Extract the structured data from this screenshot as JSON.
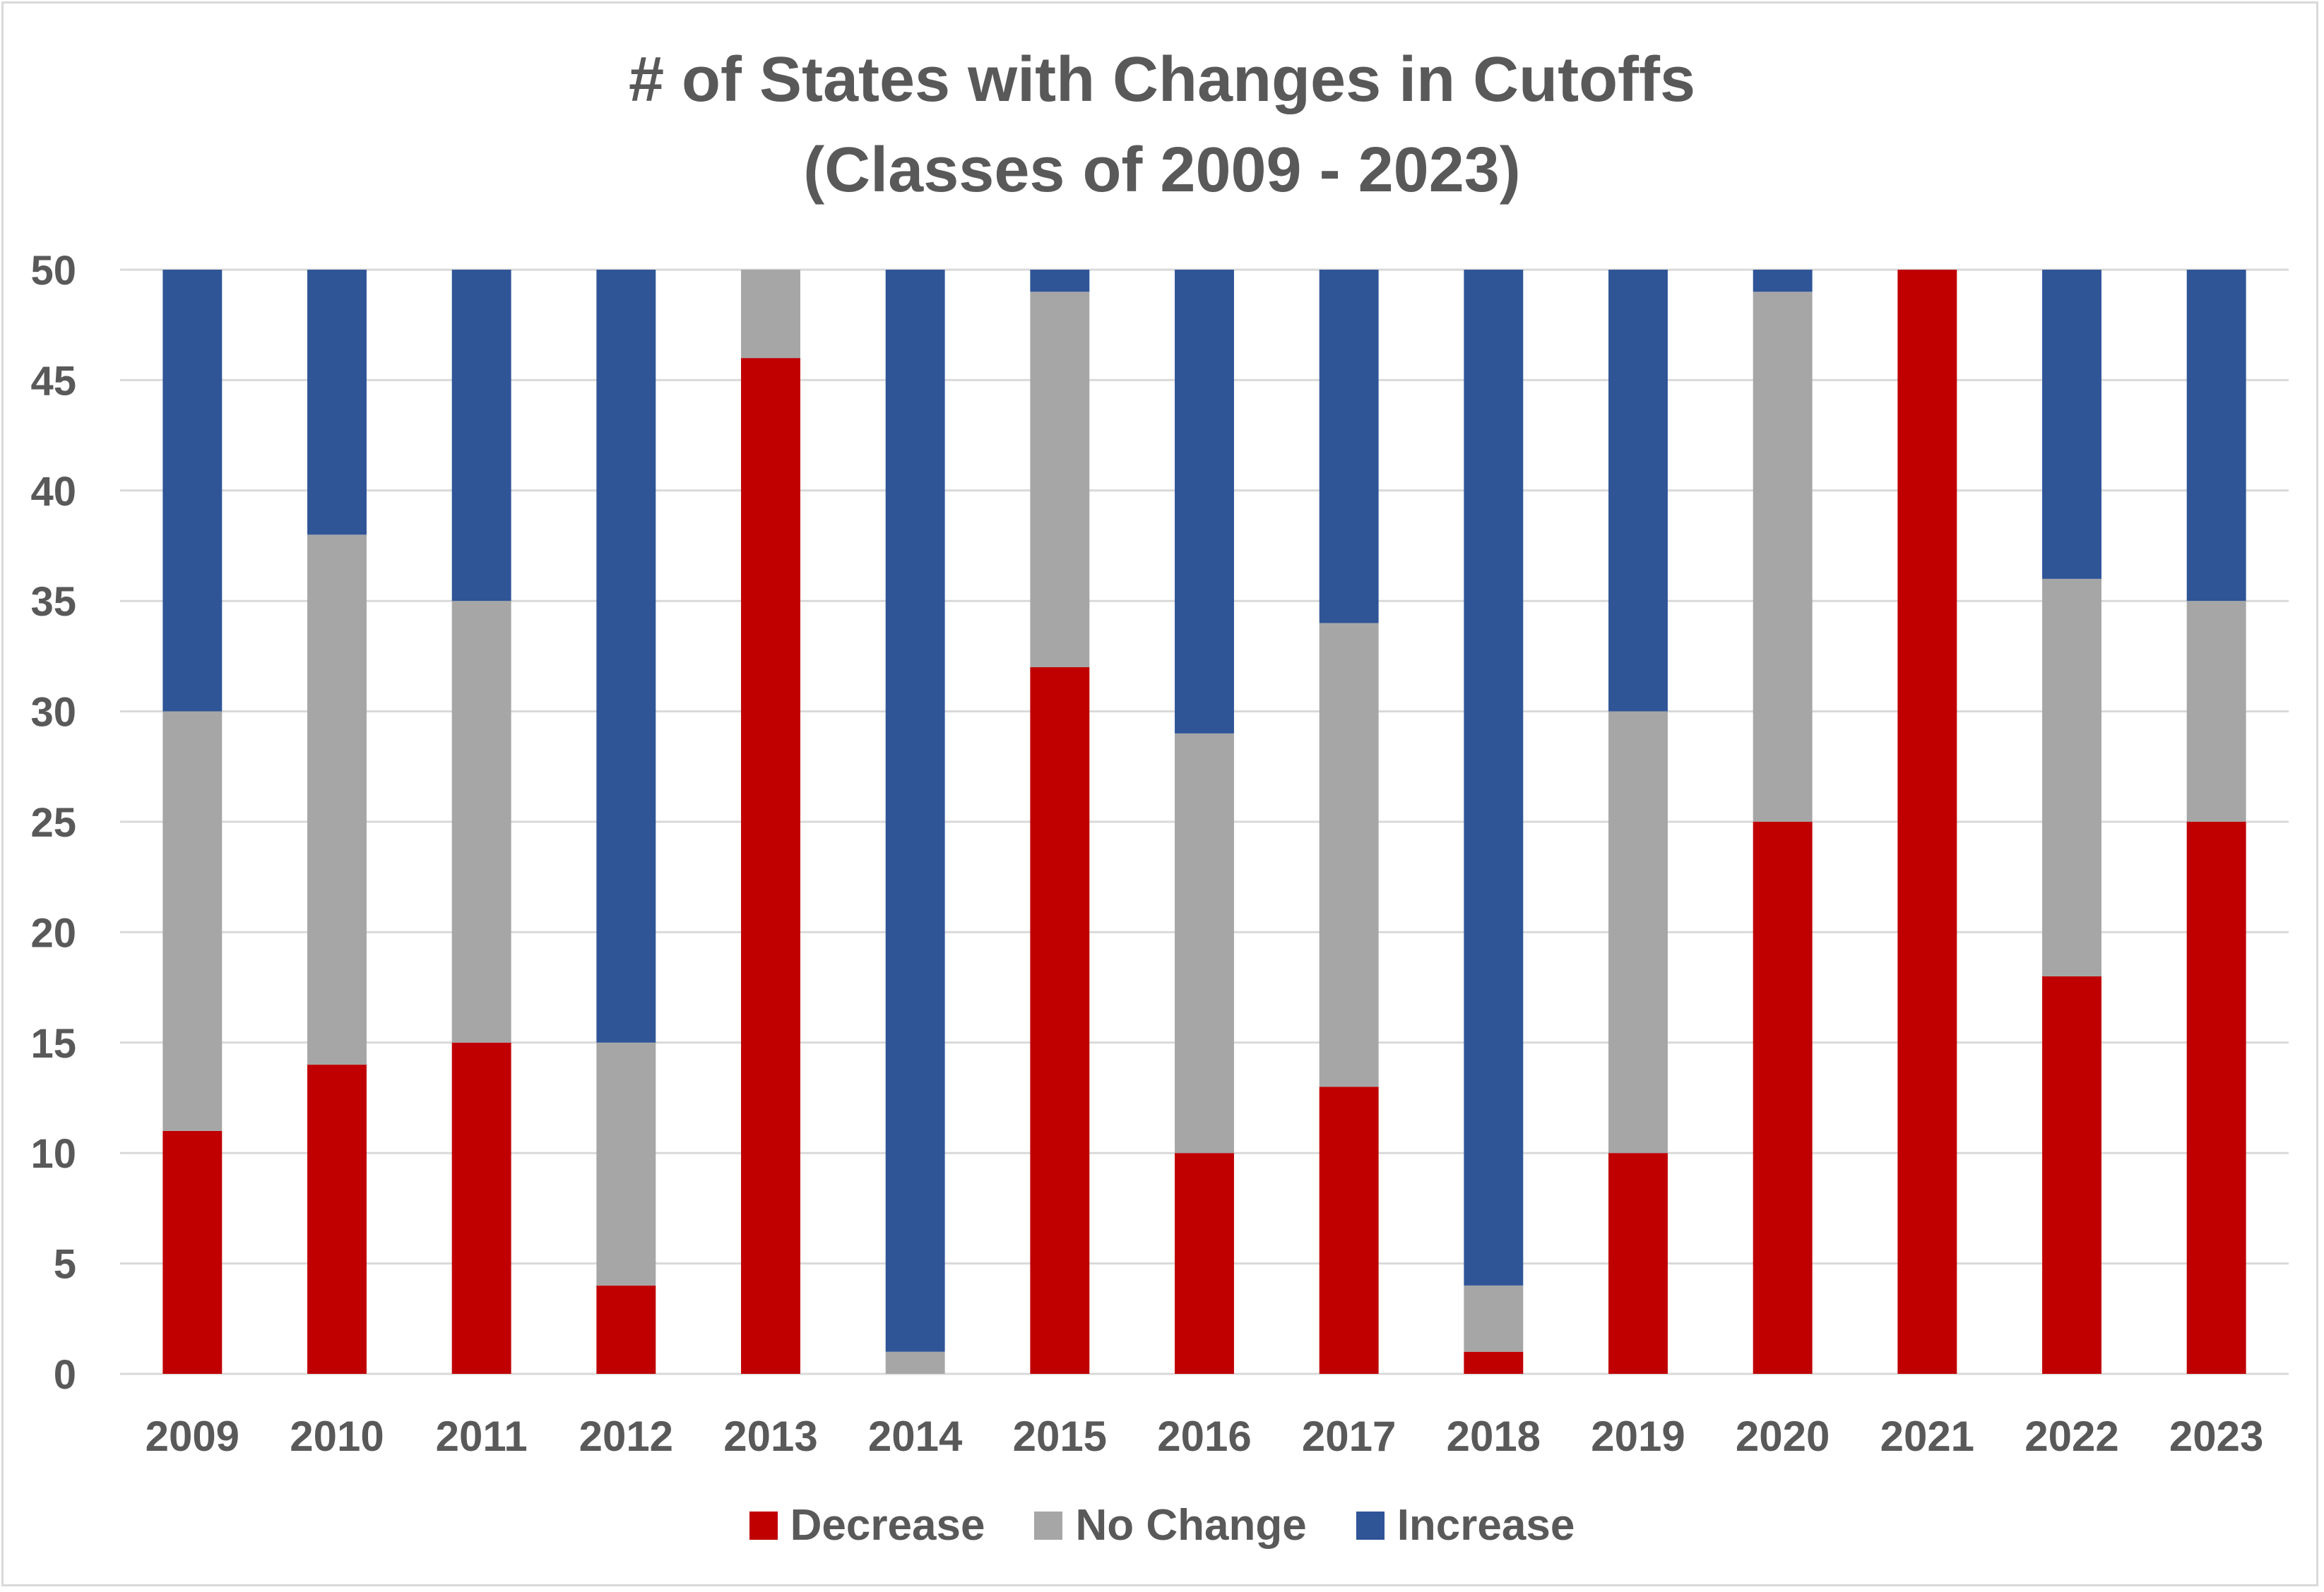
{
  "chart_data": {
    "type": "bar",
    "stacked": true,
    "title": [
      "# of States with Changes in Cutoffs",
      "(Classes of 2009 - 2023)"
    ],
    "xlabel": "",
    "ylabel": "",
    "ylim": [
      0,
      50
    ],
    "yticks": [
      0,
      5,
      10,
      15,
      20,
      25,
      30,
      35,
      40,
      45,
      50
    ],
    "grid": true,
    "legend_position": "bottom",
    "categories": [
      "2009",
      "2010",
      "2011",
      "2012",
      "2013",
      "2014",
      "2015",
      "2016",
      "2017",
      "2018",
      "2019",
      "2020",
      "2021",
      "2022",
      "2023"
    ],
    "series": [
      {
        "name": "Decrease",
        "color": "#c00000",
        "values": [
          11,
          14,
          15,
          4,
          46,
          0,
          32,
          10,
          13,
          1,
          10,
          25,
          50,
          18,
          25
        ]
      },
      {
        "name": "No Change",
        "color": "#a6a6a6",
        "values": [
          19,
          24,
          20,
          11,
          4,
          1,
          17,
          19,
          21,
          3,
          20,
          24,
          0,
          18,
          10
        ]
      },
      {
        "name": "Increase",
        "color": "#2f5597",
        "values": [
          20,
          12,
          15,
          35,
          0,
          49,
          1,
          21,
          16,
          46,
          20,
          1,
          0,
          14,
          15
        ]
      }
    ]
  }
}
